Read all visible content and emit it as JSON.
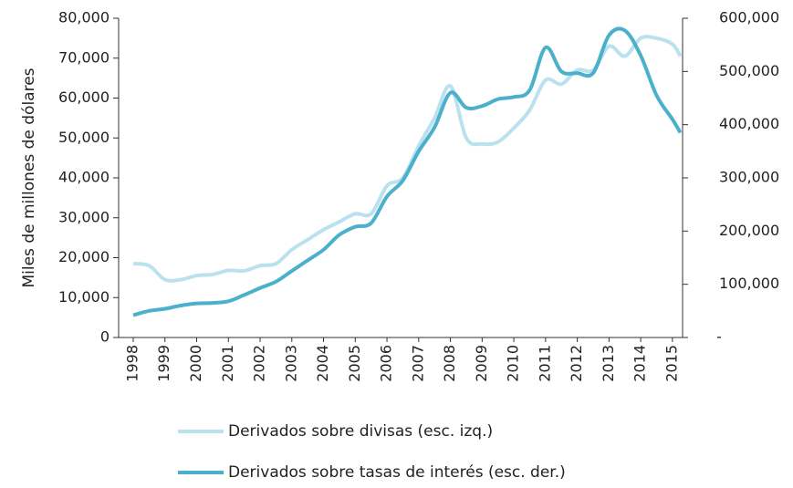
{
  "chart_data": {
    "type": "line",
    "ylabel": "Miles de millones de dólares",
    "x": [
      1998,
      1998.5,
      1999,
      1999.5,
      2000,
      2000.5,
      2001,
      2001.5,
      2002,
      2002.5,
      2003,
      2003.5,
      2004,
      2004.5,
      2005,
      2005.5,
      2006,
      2006.5,
      2007,
      2007.5,
      2008,
      2008.5,
      2009,
      2009.5,
      2010,
      2010.5,
      2011,
      2011.5,
      2012,
      2012.5,
      2013,
      2013.5,
      2014,
      2014.5,
      2015,
      2015.25
    ],
    "xlim": [
      1997.54,
      2015.32
    ],
    "xticks": [
      1998,
      1999,
      2000,
      2001,
      2002,
      2003,
      2004,
      2005,
      2006,
      2007,
      2008,
      2009,
      2010,
      2011,
      2012,
      2013,
      2014,
      2015
    ],
    "ylim": [
      0,
      80000
    ],
    "yticks": [
      0,
      {
        "value": 10000,
        "label": "10,000"
      },
      {
        "value": 20000,
        "label": "20,000"
      },
      {
        "value": 30000,
        "label": "30,000"
      },
      {
        "value": 40000,
        "label": "40,000"
      },
      {
        "value": 50000,
        "label": "50,000"
      },
      {
        "value": 60000,
        "label": "60,000"
      },
      {
        "value": 70000,
        "label": "70,000"
      },
      {
        "value": 80000,
        "label": "80,000"
      }
    ],
    "y2lim": [
      0,
      600000
    ],
    "y2ticks": [
      {
        "value": 0,
        "label": "-"
      },
      {
        "value": 100000,
        "label": "100,000"
      },
      {
        "value": 200000,
        "label": "200,000"
      },
      {
        "value": 300000,
        "label": "300,000"
      },
      {
        "value": 400000,
        "label": "400,000"
      },
      {
        "value": 500000,
        "label": "500,000"
      },
      {
        "value": 600000,
        "label": "600,000"
      }
    ],
    "series": [
      {
        "name": "Derivados sobre divisas (esc. izq.)",
        "color": "#b9e2ee",
        "axis": "y",
        "values": [
          18500,
          18000,
          14500,
          14500,
          15500,
          15800,
          16800,
          16700,
          18000,
          18500,
          22000,
          24500,
          27000,
          29000,
          31000,
          31000,
          38000,
          40000,
          48000,
          55000,
          63000,
          50000,
          48500,
          49000,
          52500,
          57000,
          64500,
          63500,
          67000,
          67000,
          73000,
          70500,
          75000,
          75000,
          73500,
          70500
        ]
      },
      {
        "name": "Derivados sobre tasas de interés (esc. der.)",
        "color": "#4bb0cb",
        "axis": "y2",
        "values": [
          42000,
          50000,
          54000,
          60000,
          64000,
          65000,
          68000,
          80000,
          93000,
          105000,
          125000,
          145000,
          165000,
          193000,
          208000,
          215000,
          265000,
          295000,
          350000,
          395000,
          460000,
          432000,
          435000,
          448000,
          452000,
          465000,
          545000,
          500000,
          497000,
          497000,
          568000,
          577000,
          530000,
          455000,
          410000,
          385000
        ]
      }
    ]
  }
}
